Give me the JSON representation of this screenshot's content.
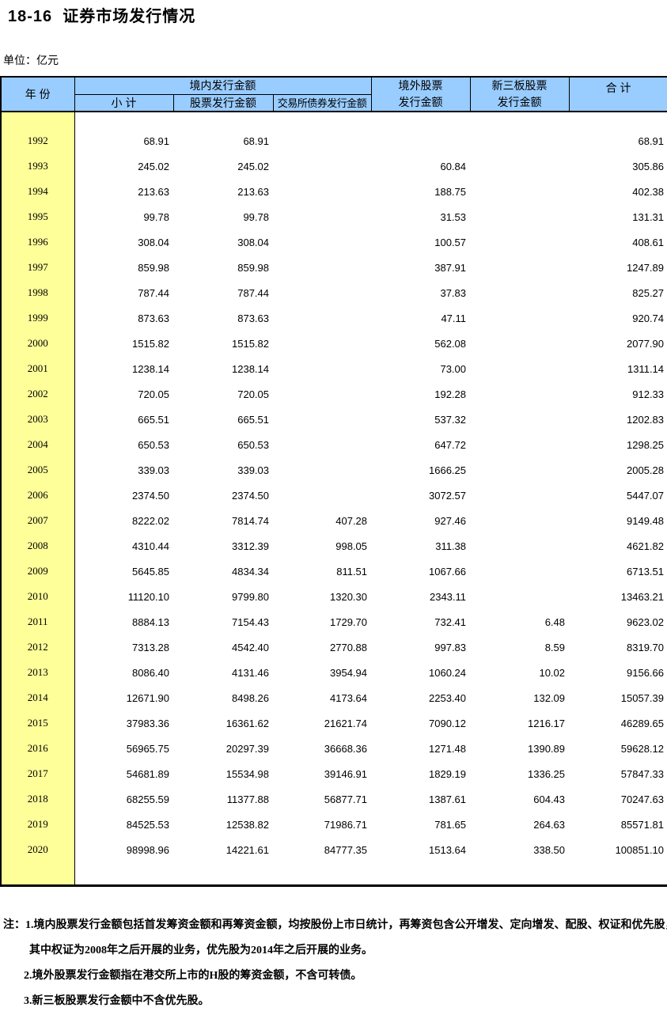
{
  "page": {
    "title": "18-16  证券市场发行情况",
    "unit_label": "单位：亿元"
  },
  "colors": {
    "header_bg": "#99CCFF",
    "year_col_bg": "#FFFF99",
    "border": "#000000"
  },
  "table": {
    "header": {
      "year": "年 份",
      "domestic_group": "境内发行金额",
      "subtotal": "小 计",
      "stock": "股票发行金额",
      "bond": "交易所债券发行金额",
      "overseas_line1": "境外股票",
      "overseas_line2": "发行金额",
      "neeq_line1": "新三板股票",
      "neeq_line2": "发行金额",
      "total": "合 计"
    },
    "rows": [
      {
        "year": "1992",
        "subtotal": "68.91",
        "stock": "68.91",
        "bond": "",
        "overseas": "",
        "neeq": "",
        "total": "68.91"
      },
      {
        "year": "1993",
        "subtotal": "245.02",
        "stock": "245.02",
        "bond": "",
        "overseas": "60.84",
        "neeq": "",
        "total": "305.86"
      },
      {
        "year": "1994",
        "subtotal": "213.63",
        "stock": "213.63",
        "bond": "",
        "overseas": "188.75",
        "neeq": "",
        "total": "402.38"
      },
      {
        "year": "1995",
        "subtotal": "99.78",
        "stock": "99.78",
        "bond": "",
        "overseas": "31.53",
        "neeq": "",
        "total": "131.31"
      },
      {
        "year": "1996",
        "subtotal": "308.04",
        "stock": "308.04",
        "bond": "",
        "overseas": "100.57",
        "neeq": "",
        "total": "408.61"
      },
      {
        "year": "1997",
        "subtotal": "859.98",
        "stock": "859.98",
        "bond": "",
        "overseas": "387.91",
        "neeq": "",
        "total": "1247.89"
      },
      {
        "year": "1998",
        "subtotal": "787.44",
        "stock": "787.44",
        "bond": "",
        "overseas": "37.83",
        "neeq": "",
        "total": "825.27"
      },
      {
        "year": "1999",
        "subtotal": "873.63",
        "stock": "873.63",
        "bond": "",
        "overseas": "47.11",
        "neeq": "",
        "total": "920.74"
      },
      {
        "year": "2000",
        "subtotal": "1515.82",
        "stock": "1515.82",
        "bond": "",
        "overseas": "562.08",
        "neeq": "",
        "total": "2077.90"
      },
      {
        "year": "2001",
        "subtotal": "1238.14",
        "stock": "1238.14",
        "bond": "",
        "overseas": "73.00",
        "neeq": "",
        "total": "1311.14"
      },
      {
        "year": "2002",
        "subtotal": "720.05",
        "stock": "720.05",
        "bond": "",
        "overseas": "192.28",
        "neeq": "",
        "total": "912.33"
      },
      {
        "year": "2003",
        "subtotal": "665.51",
        "stock": "665.51",
        "bond": "",
        "overseas": "537.32",
        "neeq": "",
        "total": "1202.83"
      },
      {
        "year": "2004",
        "subtotal": "650.53",
        "stock": "650.53",
        "bond": "",
        "overseas": "647.72",
        "neeq": "",
        "total": "1298.25"
      },
      {
        "year": "2005",
        "subtotal": "339.03",
        "stock": "339.03",
        "bond": "",
        "overseas": "1666.25",
        "neeq": "",
        "total": "2005.28"
      },
      {
        "year": "2006",
        "subtotal": "2374.50",
        "stock": "2374.50",
        "bond": "",
        "overseas": "3072.57",
        "neeq": "",
        "total": "5447.07"
      },
      {
        "year": "2007",
        "subtotal": "8222.02",
        "stock": "7814.74",
        "bond": "407.28",
        "overseas": "927.46",
        "neeq": "",
        "total": "9149.48"
      },
      {
        "year": "2008",
        "subtotal": "4310.44",
        "stock": "3312.39",
        "bond": "998.05",
        "overseas": "311.38",
        "neeq": "",
        "total": "4621.82"
      },
      {
        "year": "2009",
        "subtotal": "5645.85",
        "stock": "4834.34",
        "bond": "811.51",
        "overseas": "1067.66",
        "neeq": "",
        "total": "6713.51"
      },
      {
        "year": "2010",
        "subtotal": "11120.10",
        "stock": "9799.80",
        "bond": "1320.30",
        "overseas": "2343.11",
        "neeq": "",
        "total": "13463.21"
      },
      {
        "year": "2011",
        "subtotal": "8884.13",
        "stock": "7154.43",
        "bond": "1729.70",
        "overseas": "732.41",
        "neeq": "6.48",
        "total": "9623.02"
      },
      {
        "year": "2012",
        "subtotal": "7313.28",
        "stock": "4542.40",
        "bond": "2770.88",
        "overseas": "997.83",
        "neeq": "8.59",
        "total": "8319.70"
      },
      {
        "year": "2013",
        "subtotal": "8086.40",
        "stock": "4131.46",
        "bond": "3954.94",
        "overseas": "1060.24",
        "neeq": "10.02",
        "total": "9156.66"
      },
      {
        "year": "2014",
        "subtotal": "12671.90",
        "stock": "8498.26",
        "bond": "4173.64",
        "overseas": "2253.40",
        "neeq": "132.09",
        "total": "15057.39"
      },
      {
        "year": "2015",
        "subtotal": "37983.36",
        "stock": "16361.62",
        "bond": "21621.74",
        "overseas": "7090.12",
        "neeq": "1216.17",
        "total": "46289.65"
      },
      {
        "year": "2016",
        "subtotal": "56965.75",
        "stock": "20297.39",
        "bond": "36668.36",
        "overseas": "1271.48",
        "neeq": "1390.89",
        "total": "59628.12"
      },
      {
        "year": "2017",
        "subtotal": "54681.89",
        "stock": "15534.98",
        "bond": "39146.91",
        "overseas": "1829.19",
        "neeq": "1336.25",
        "total": "57847.33"
      },
      {
        "year": "2018",
        "subtotal": "68255.59",
        "stock": "11377.88",
        "bond": "56877.71",
        "overseas": "1387.61",
        "neeq": "604.43",
        "total": "70247.63"
      },
      {
        "year": "2019",
        "subtotal": "84525.53",
        "stock": "12538.82",
        "bond": "71986.71",
        "overseas": "781.65",
        "neeq": "264.63",
        "total": "85571.81"
      },
      {
        "year": "2020",
        "subtotal": "98998.96",
        "stock": "14221.61",
        "bond": "84777.35",
        "overseas": "1513.64",
        "neeq": "338.50",
        "total": "100851.10"
      }
    ]
  },
  "notes": {
    "line1": "注：1.境内股票发行金额包括首发筹资金额和再筹资金额，均按股份上市日统计，再筹资包含公开增发、定向增发、配股、权证和优先股，",
    "line2": "其中权证为2008年之后开展的业务，优先股为2014年之后开展的业务。",
    "line3": "2.境外股票发行金额指在港交所上市的H股的筹资金额，不含可转债。",
    "line4": "3.新三板股票发行金额中不含优先股。"
  }
}
